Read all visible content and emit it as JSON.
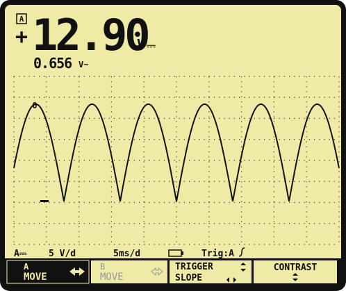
{
  "display": {
    "channel": "A",
    "sign": "+",
    "main_reading": "12.90",
    "main_unit": "V",
    "main_coupling": "⎓",
    "secondary_reading": "0.656",
    "secondary_unit": "V~",
    "trace_marker": "0"
  },
  "status": {
    "channel": "A⎓",
    "volts_per_div": "5 V/d",
    "time_per_div": "5ms/d",
    "trigger": "Trig:A"
  },
  "softkeys": [
    {
      "line1": "A",
      "line2": "MOVE"
    },
    {
      "line1": "B",
      "line2": "MOVE"
    },
    {
      "line1": "TRIGGER",
      "line2": "SLOPE"
    },
    {
      "line1": "CONTRAST"
    }
  ]
}
